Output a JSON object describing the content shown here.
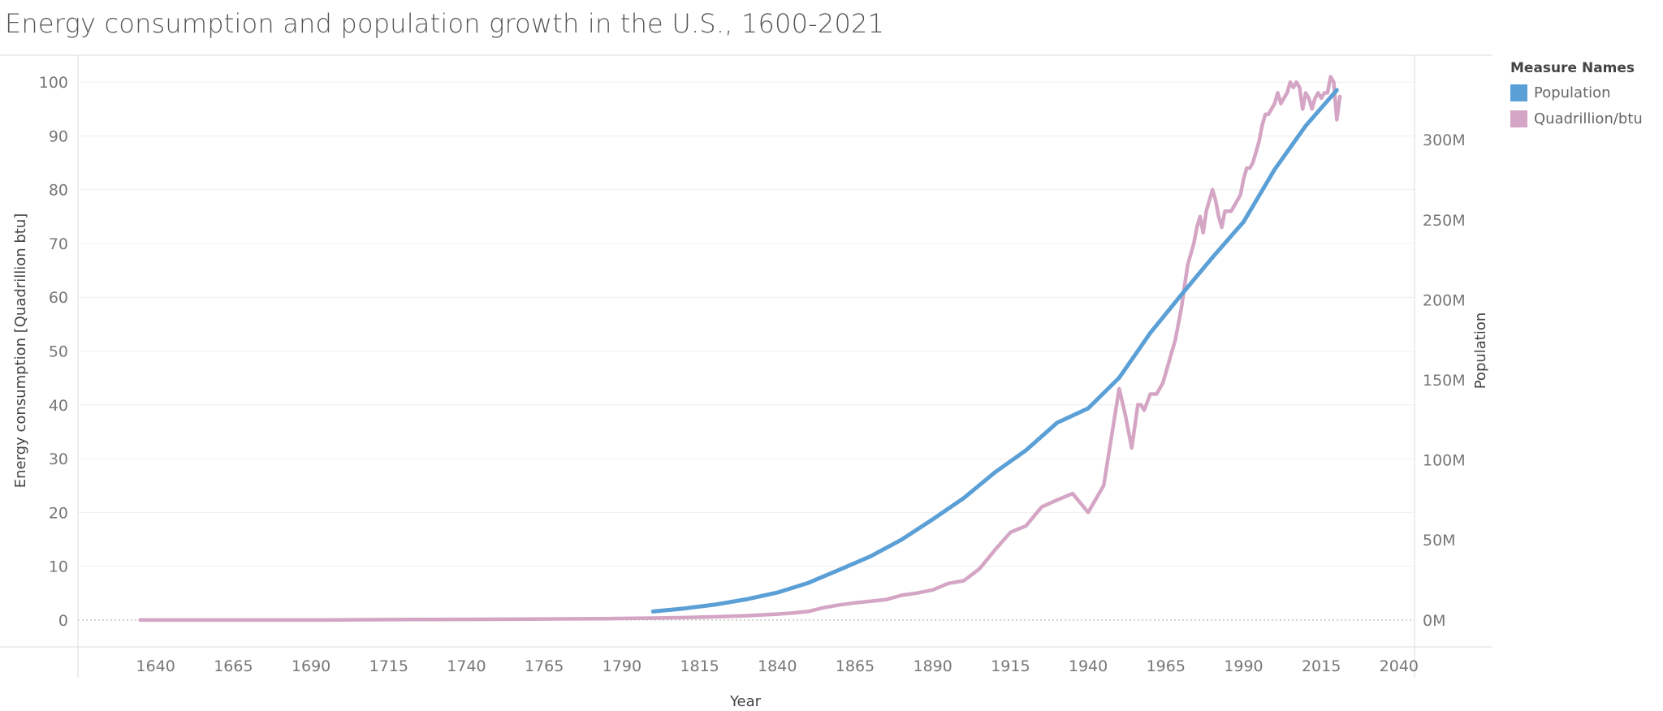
{
  "title": "Energy consumption and population growth in the U.S., 1600-2021",
  "legend": {
    "title": "Measure Names",
    "items": [
      {
        "label": "Population",
        "color": "#5a9fd6"
      },
      {
        "label": "Quadrillion/btu",
        "color": "#d4a5c4"
      }
    ]
  },
  "chart_data": {
    "type": "line",
    "xlabel": "Year",
    "ylabel_left": "Energy consumption [Quadrillion btu]",
    "ylabel_right": "Population",
    "xlim": [
      1615,
      2045
    ],
    "ylim_left": [
      -5,
      105
    ],
    "ylim_right": [
      -16800000,
      352800000
    ],
    "x_ticks": [
      1640,
      1665,
      1690,
      1715,
      1740,
      1765,
      1790,
      1815,
      1840,
      1865,
      1890,
      1915,
      1940,
      1965,
      1990,
      2015,
      2040
    ],
    "y_left_ticks": [
      0,
      10,
      20,
      30,
      40,
      50,
      60,
      70,
      80,
      90,
      100
    ],
    "y_right_ticks": [
      {
        "value": 0,
        "label": "0M"
      },
      {
        "value": 50000000,
        "label": "50M"
      },
      {
        "value": 100000000,
        "label": "100M"
      },
      {
        "value": 150000000,
        "label": "150M"
      },
      {
        "value": 200000000,
        "label": "200M"
      },
      {
        "value": 250000000,
        "label": "250M"
      },
      {
        "value": 300000000,
        "label": "300M"
      }
    ],
    "grid": true,
    "legend_position": "top-right",
    "series": [
      {
        "name": "Quadrillion/btu",
        "axis": "left",
        "color": "#d4a5c4",
        "x": [
          1635,
          1650,
          1665,
          1680,
          1695,
          1710,
          1725,
          1740,
          1755,
          1770,
          1785,
          1800,
          1810,
          1820,
          1830,
          1840,
          1845,
          1850,
          1855,
          1860,
          1865,
          1870,
          1875,
          1880,
          1885,
          1890,
          1895,
          1900,
          1905,
          1910,
          1915,
          1920,
          1925,
          1930,
          1935,
          1940,
          1945,
          1950,
          1952,
          1954,
          1955,
          1956,
          1957,
          1958,
          1960,
          1962,
          1963,
          1964,
          1965,
          1966,
          1967,
          1968,
          1969,
          1970,
          1971,
          1972,
          1973,
          1974,
          1975,
          1976,
          1977,
          1978,
          1979,
          1980,
          1981,
          1982,
          1983,
          1984,
          1985,
          1986,
          1987,
          1988,
          1989,
          1990,
          1991,
          1992,
          1993,
          1994,
          1995,
          1996,
          1997,
          1998,
          1999,
          2000,
          2001,
          2002,
          2003,
          2004,
          2005,
          2006,
          2007,
          2008,
          2009,
          2010,
          2011,
          2012,
          2013,
          2014,
          2015,
          2016,
          2017,
          2018,
          2019,
          2020,
          2021
        ],
        "values": [
          0,
          0,
          0,
          0,
          0,
          0.05,
          0.1,
          0.12,
          0.15,
          0.2,
          0.25,
          0.35,
          0.45,
          0.6,
          0.8,
          1.1,
          1.3,
          1.6,
          2.3,
          2.8,
          3.2,
          3.5,
          3.8,
          4.6,
          5.0,
          5.6,
          6.8,
          7.3,
          9.5,
          13,
          16.3,
          17.5,
          21,
          22.3,
          23.5,
          20,
          25,
          43,
          38,
          32,
          36,
          40,
          40,
          39,
          42,
          42,
          43,
          44,
          46,
          48,
          50,
          52,
          55,
          58,
          62,
          66,
          68,
          70,
          73,
          75,
          72,
          76,
          78,
          80,
          78,
          75,
          73,
          76,
          76,
          76,
          77,
          78,
          79,
          82,
          84,
          84,
          85,
          87,
          89,
          92,
          94,
          94,
          95,
          96,
          98,
          96,
          97,
          98,
          100,
          99,
          100,
          99,
          95,
          98,
          97,
          95,
          97,
          98,
          97,
          98,
          98,
          101,
          100,
          93,
          97.3
        ]
      },
      {
        "name": "Population",
        "axis": "right",
        "color": "#5a9fd6",
        "x": [
          1800,
          1810,
          1820,
          1830,
          1840,
          1850,
          1860,
          1870,
          1880,
          1890,
          1900,
          1910,
          1920,
          1930,
          1940,
          1950,
          1960,
          1970,
          1980,
          1990,
          2000,
          2010,
          2020
        ],
        "values": [
          5300000,
          7200000,
          9600000,
          12900000,
          17100000,
          23200000,
          31400000,
          39800000,
          50200000,
          62900000,
          76200000,
          92200000,
          106000000,
          123200000,
          132200000,
          151300000,
          179300000,
          203200000,
          226500000,
          248700000,
          281400000,
          308700000,
          331000000
        ]
      }
    ]
  }
}
